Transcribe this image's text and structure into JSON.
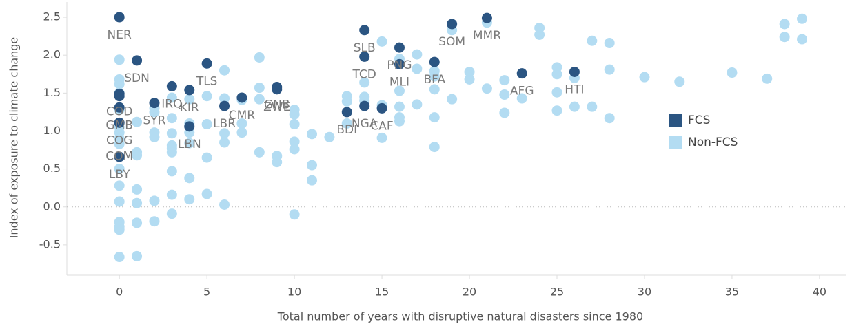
{
  "chart_data": {
    "type": "scatter",
    "xlabel": "Total number of years with disruptive natural disasters since 1980",
    "ylabel": "Index of exposure to climate change",
    "xlim": [
      -3,
      41.5
    ],
    "ylim": [
      -0.9,
      2.7
    ],
    "xticks": [
      0,
      5,
      10,
      15,
      20,
      25,
      30,
      35,
      40
    ],
    "yticks": [
      -0.5,
      {
        "value": 0,
        "label": "0.0"
      },
      0.5,
      {
        "value": 1,
        "label": "1.0"
      },
      1.5,
      {
        "value": 2,
        "label": "2.0"
      },
      2.5
    ],
    "zero_line": true,
    "series": [
      {
        "name": "Non-FCS",
        "color": "#b3dcf2",
        "x": [
          0,
          0,
          0,
          0,
          0,
          0,
          0,
          0,
          0,
          0,
          0,
          0,
          0,
          0,
          0,
          0,
          1,
          1,
          1,
          1,
          1,
          1,
          1,
          2,
          2,
          2,
          2,
          2,
          2,
          3,
          3,
          3,
          3,
          3,
          3,
          3,
          3,
          3,
          4,
          4,
          4,
          4,
          4,
          4,
          5,
          5,
          5,
          5,
          6,
          6,
          6,
          6,
          6,
          7,
          7,
          7,
          8,
          8,
          8,
          8,
          9,
          9,
          10,
          10,
          10,
          10,
          10,
          10,
          11,
          11,
          11,
          12,
          13,
          13,
          13,
          14,
          14,
          14,
          15,
          15,
          15,
          16,
          16,
          16,
          16,
          16,
          17,
          17,
          17,
          18,
          18,
          18,
          18,
          18,
          19,
          19,
          20,
          20,
          21,
          21,
          22,
          22,
          22,
          23,
          24,
          24,
          25,
          25,
          25,
          25,
          26,
          26,
          27,
          27,
          28,
          28,
          28,
          30,
          32,
          35,
          37,
          38,
          38,
          39,
          39
        ],
        "values": [
          1.94,
          1.68,
          1.62,
          1.5,
          1.28,
          1.05,
          0.98,
          0.9,
          0.83,
          0.5,
          0.28,
          0.07,
          -0.2,
          -0.26,
          -0.3,
          -0.66,
          1.12,
          0.72,
          0.68,
          0.23,
          0.05,
          -0.21,
          -0.65,
          1.3,
          1.25,
          0.98,
          0.92,
          0.08,
          -0.19,
          1.44,
          1.17,
          0.97,
          0.81,
          0.77,
          0.72,
          0.47,
          0.16,
          -0.09,
          1.42,
          1.1,
          0.98,
          0.84,
          0.38,
          0.1,
          1.46,
          1.09,
          0.65,
          0.17,
          1.8,
          1.43,
          0.97,
          0.85,
          0.03,
          1.41,
          1.1,
          0.98,
          1.97,
          1.57,
          1.42,
          0.72,
          0.67,
          0.59,
          1.28,
          1.22,
          1.09,
          0.86,
          0.76,
          -0.1,
          0.96,
          0.55,
          0.35,
          0.92,
          1.46,
          1.39,
          1.1,
          1.64,
          1.45,
          1.4,
          2.18,
          1.34,
          0.91,
          1.95,
          1.53,
          1.32,
          1.18,
          1.13,
          2.01,
          1.82,
          1.35,
          1.79,
          1.72,
          1.55,
          1.18,
          0.79,
          2.33,
          1.42,
          1.78,
          1.68,
          2.43,
          1.56,
          1.67,
          1.48,
          1.24,
          1.43,
          2.36,
          2.27,
          1.84,
          1.75,
          1.51,
          1.27,
          1.7,
          1.32,
          2.19,
          1.32,
          2.16,
          1.81,
          1.17,
          1.71,
          1.65,
          1.77,
          1.69,
          2.41,
          2.24,
          2.48,
          2.21
        ],
        "labels": [
          null,
          null,
          null,
          null,
          null,
          null,
          null,
          "COM",
          null,
          null,
          null,
          null,
          null,
          null,
          null,
          null,
          null,
          null,
          null,
          null,
          null,
          null,
          null,
          null,
          null,
          null,
          null,
          null,
          null,
          null,
          null,
          null,
          null,
          null,
          null,
          null,
          null,
          null,
          null,
          null,
          null,
          null,
          null,
          null,
          null,
          null,
          null,
          null,
          null,
          null,
          null,
          null,
          null,
          null,
          null,
          null,
          null,
          null,
          null,
          null,
          null,
          null,
          null,
          null,
          null,
          null,
          null,
          null,
          null,
          null,
          null,
          null,
          null,
          null,
          null,
          null,
          null,
          null,
          null,
          null,
          null,
          null,
          null,
          null,
          null,
          null,
          null,
          null,
          null,
          null,
          null,
          null,
          null,
          null,
          null,
          null,
          null,
          null,
          null,
          null,
          null,
          null,
          null,
          null,
          null,
          null,
          null,
          null,
          null,
          null,
          null,
          null,
          null,
          null,
          null,
          null,
          null,
          null,
          null,
          null,
          null,
          null,
          null,
          null,
          null
        ]
      },
      {
        "name": "FCS",
        "color": "#2b5582",
        "x": [
          0,
          0,
          0,
          0,
          0,
          0,
          1,
          2,
          3,
          4,
          4,
          5,
          6,
          7,
          9,
          9,
          13,
          14,
          14,
          14,
          15,
          16,
          16,
          18,
          19,
          21,
          23,
          26
        ],
        "values": [
          2.5,
          1.49,
          1.46,
          1.31,
          1.11,
          0.66,
          1.93,
          1.37,
          1.59,
          1.54,
          1.06,
          1.89,
          1.33,
          1.44,
          1.58,
          1.55,
          1.25,
          2.33,
          1.98,
          1.33,
          1.3,
          2.1,
          1.88,
          1.91,
          2.41,
          2.49,
          1.76,
          1.78
        ],
        "labels": [
          "NER",
          "COD",
          null,
          "GMB",
          "COG",
          "LBY",
          "SDN",
          "SYR",
          "IRQ",
          "KIR",
          "LBN",
          "TLS",
          "LBR",
          "CMR",
          "GNB",
          "ZWE",
          "BDI",
          "SLB",
          "TCD",
          "NGA",
          "CAF",
          "PNG",
          "MLI",
          "BFA",
          "SOM",
          "MMR",
          "AFG",
          "HTI"
        ]
      }
    ]
  }
}
